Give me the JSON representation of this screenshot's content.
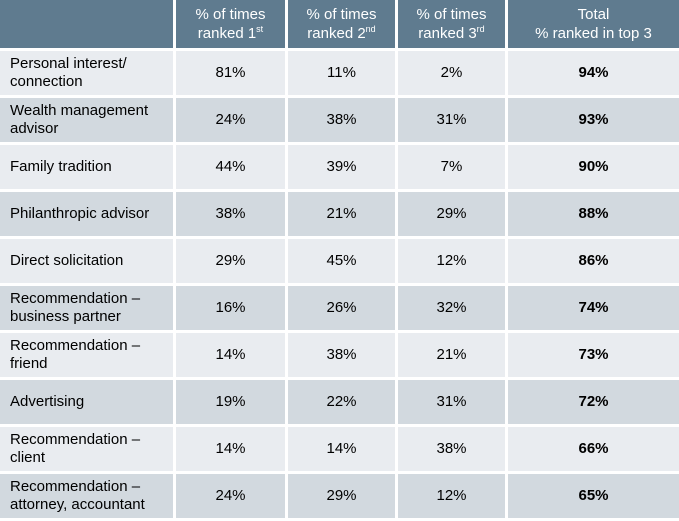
{
  "colors": {
    "header_bg": "#5f7b8f",
    "header_text": "#ffffff",
    "row_light": "#e9ecf0",
    "row_dark": "#d2d9df",
    "text": "#000000"
  },
  "chart_data": {
    "type": "table",
    "columns": [
      {
        "key": "label",
        "lines": [
          ""
        ]
      },
      {
        "key": "first",
        "lines": [
          "% of times",
          "ranked 1"
        ],
        "sup": "st"
      },
      {
        "key": "second",
        "lines": [
          "% of times",
          "ranked 2"
        ],
        "sup": "nd"
      },
      {
        "key": "third",
        "lines": [
          "% of times",
          "ranked 3"
        ],
        "sup": "rd"
      },
      {
        "key": "total",
        "lines": [
          "Total",
          "% ranked in top 3"
        ]
      }
    ],
    "rows": [
      {
        "label": [
          "Personal interest/",
          "connection"
        ],
        "first": "81%",
        "second": "11%",
        "third": "2%",
        "total": "94%"
      },
      {
        "label": [
          "Wealth management",
          "advisor"
        ],
        "first": "24%",
        "second": "38%",
        "third": "31%",
        "total": "93%"
      },
      {
        "label": [
          "Family tradition"
        ],
        "first": "44%",
        "second": "39%",
        "third": "7%",
        "total": "90%"
      },
      {
        "label": [
          "Philanthropic advisor"
        ],
        "first": "38%",
        "second": "21%",
        "third": "29%",
        "total": "88%"
      },
      {
        "label": [
          "Direct solicitation"
        ],
        "first": "29%",
        "second": "45%",
        "third": "12%",
        "total": "86%"
      },
      {
        "label": [
          "Recommendation –",
          "business partner"
        ],
        "first": "16%",
        "second": "26%",
        "third": "32%",
        "total": "74%"
      },
      {
        "label": [
          "Recommendation –",
          "friend"
        ],
        "first": "14%",
        "second": "38%",
        "third": "21%",
        "total": "73%"
      },
      {
        "label": [
          "Advertising"
        ],
        "first": "19%",
        "second": "22%",
        "third": "31%",
        "total": "72%"
      },
      {
        "label": [
          "Recommendation –",
          "client"
        ],
        "first": "14%",
        "second": "14%",
        "third": "38%",
        "total": "66%"
      },
      {
        "label": [
          "Recommendation –",
          "attorney, accountant"
        ],
        "first": "24%",
        "second": "29%",
        "third": "12%",
        "total": "65%"
      }
    ]
  }
}
